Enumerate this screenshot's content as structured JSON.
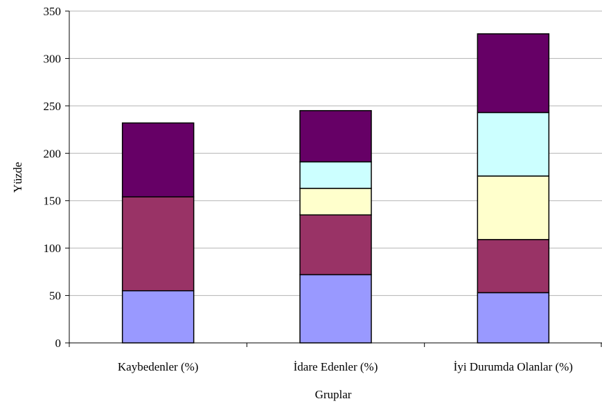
{
  "chart_data": {
    "type": "bar",
    "stacked": true,
    "title": "",
    "xlabel": "Gruplar",
    "ylabel": "Yüzde",
    "ylim": [
      0,
      350
    ],
    "yticks": [
      0,
      50,
      100,
      150,
      200,
      250,
      300,
      350
    ],
    "grid": true,
    "legend": "none",
    "categories": [
      "Kaybedenler (%)",
      "İdare Edenler (%)",
      "İyi Durumda Olanlar (%)"
    ],
    "series": [
      {
        "color": "#9999ff",
        "values": [
          55,
          72,
          53
        ]
      },
      {
        "color": "#993366",
        "values": [
          99,
          63,
          56
        ]
      },
      {
        "color": "#ffffcc",
        "values": [
          0,
          28,
          67
        ]
      },
      {
        "color": "#ccffff",
        "values": [
          0,
          28,
          67
        ]
      },
      {
        "color": "#660066",
        "values": [
          78,
          54,
          83
        ]
      }
    ]
  }
}
